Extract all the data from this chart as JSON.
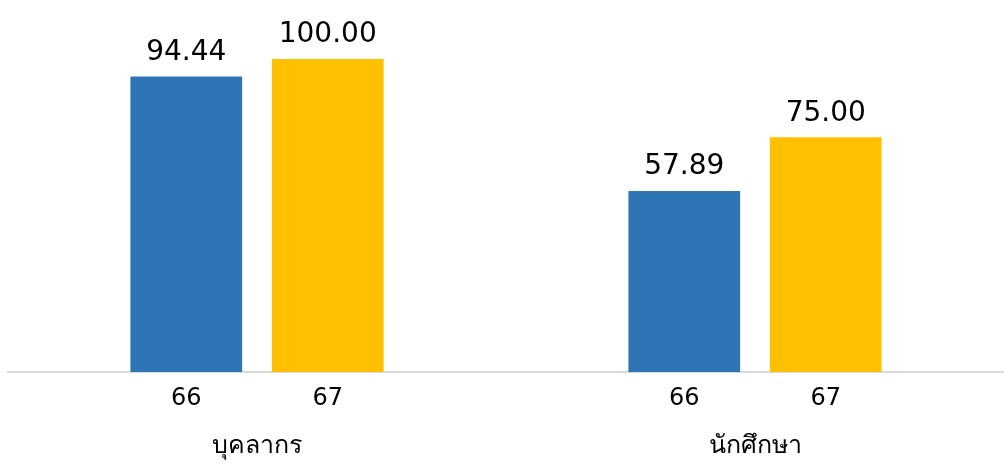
{
  "chart_data": {
    "type": "bar",
    "categories": [
      "บุคลากร",
      "นักศึกษา"
    ],
    "series": [
      {
        "name": "66",
        "color": "#2e75b6",
        "values": [
          94.44,
          57.89
        ],
        "value_labels": [
          "94.44",
          "57.89"
        ]
      },
      {
        "name": "67",
        "color": "#ffc000",
        "values": [
          100,
          75
        ],
        "value_labels": [
          "100.00",
          "75.00"
        ]
      }
    ],
    "grid": false,
    "legend": false
  }
}
